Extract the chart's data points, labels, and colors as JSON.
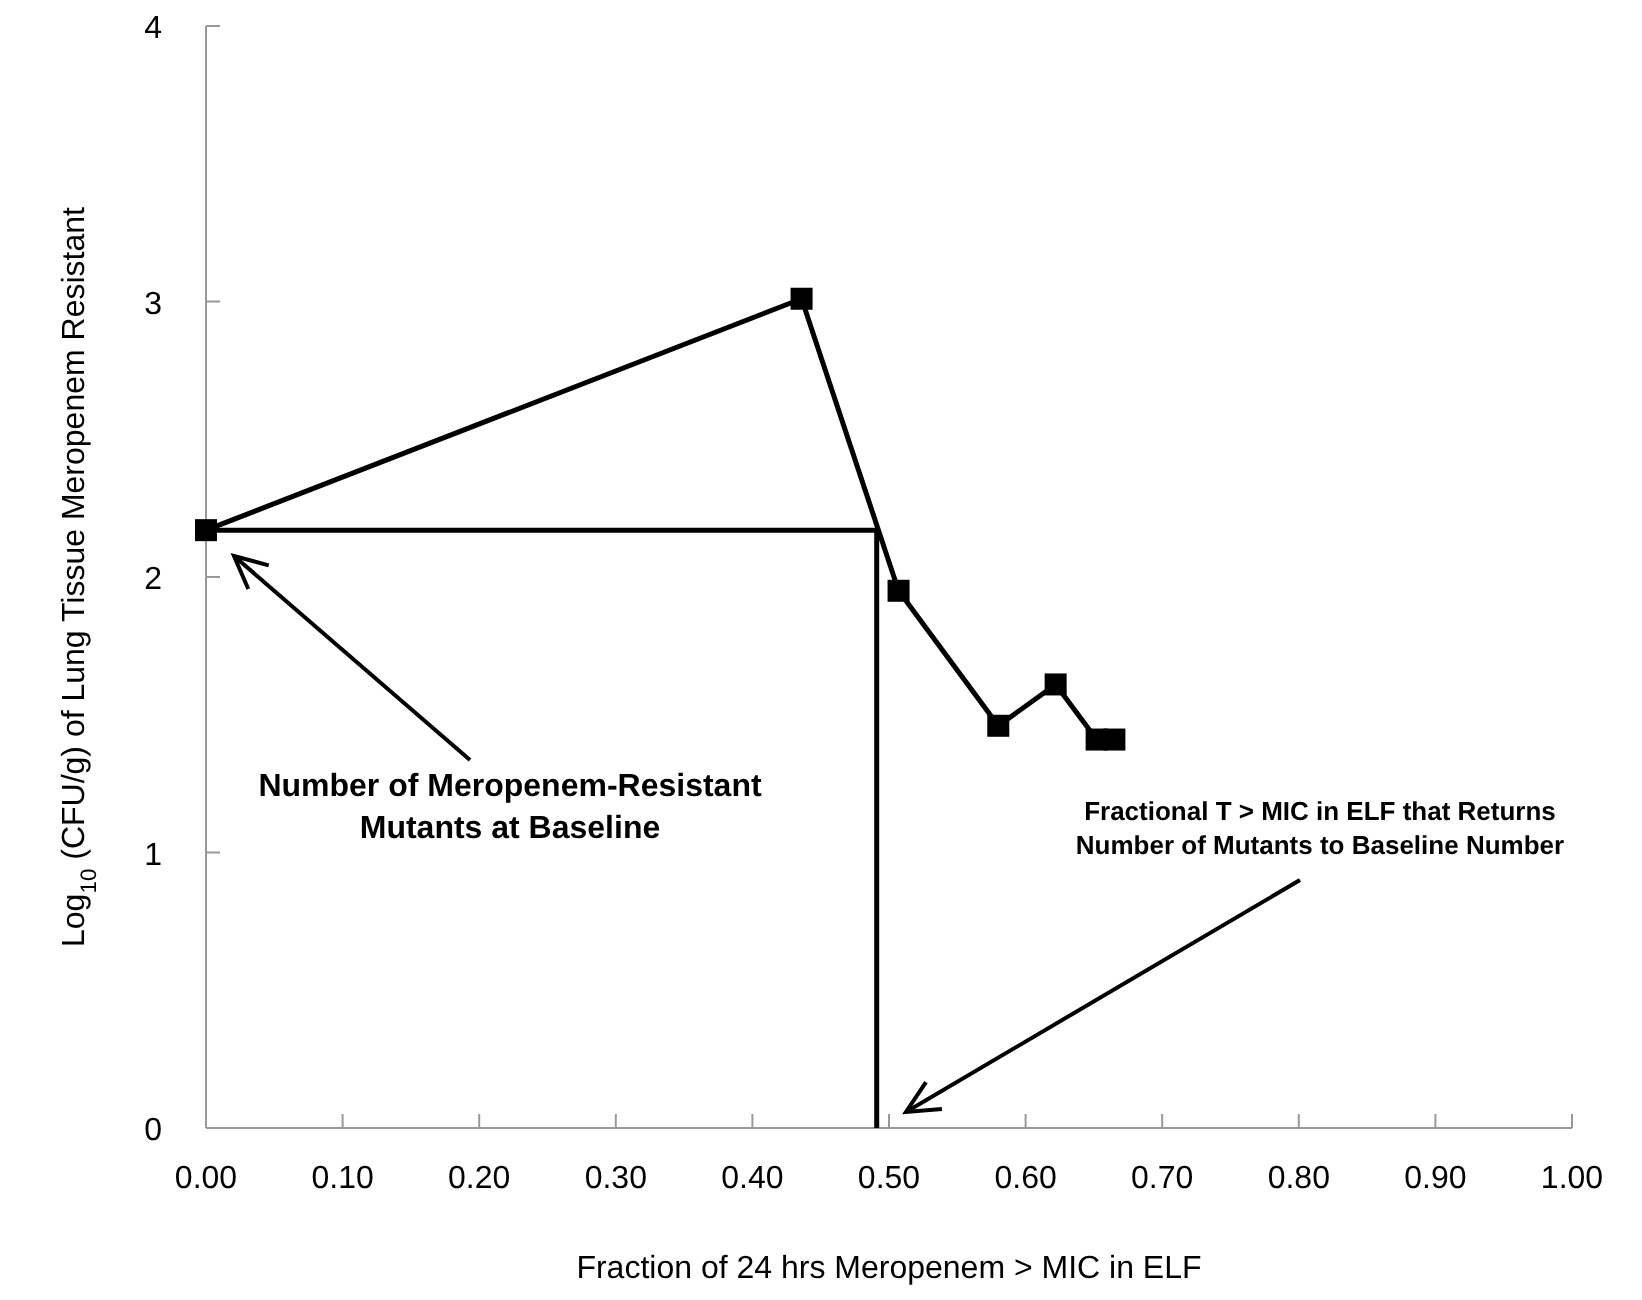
{
  "chart_data": {
    "type": "line",
    "xlabel": "Fraction of 24 hrs Meropenem > MIC in ELF",
    "ylabel": "Log$_{10}$ (CFU/g) of Lung Tissue Meropenem Resistant",
    "xlim": [
      0,
      1
    ],
    "ylim": [
      0,
      4
    ],
    "xticks": [
      {
        "value": 0,
        "label": "0.00"
      },
      {
        "value": 0.1,
        "label": "0.10"
      },
      {
        "value": 0.2,
        "label": "0.20"
      },
      {
        "value": 0.3,
        "label": "0.30"
      },
      {
        "value": 0.4,
        "label": "0.40"
      },
      {
        "value": 0.5,
        "label": "0.50"
      },
      {
        "value": 0.6,
        "label": "0.60"
      },
      {
        "value": 0.7,
        "label": "0.70"
      },
      {
        "value": 0.8,
        "label": "0.80"
      },
      {
        "value": 0.9,
        "label": "0.90"
      },
      {
        "value": 1,
        "label": "1.00"
      }
    ],
    "yticks": [
      0,
      1,
      2,
      3,
      4
    ],
    "grid": false,
    "marker": "square",
    "line_style": "solid",
    "series": [
      {
        "color": "#000000",
        "x": [
          0,
          0.436,
          0.507,
          0.58,
          0.622,
          0.652,
          0.665
        ],
        "values": [
          2.17,
          3.01,
          1.95,
          1.46,
          1.61,
          1.41,
          1.41
        ]
      },
      {
        "color": "#000000",
        "marker": "none",
        "x": [
          0,
          0.491,
          0.491
        ],
        "values": [
          2.17,
          2.17,
          0
        ]
      }
    ],
    "annotations": [
      "Number of Meropenem-Resistant Mutants at Baseline",
      "Fractional T > MIC in ELF that Returns Number of Mutants to Baseline Number"
    ]
  }
}
